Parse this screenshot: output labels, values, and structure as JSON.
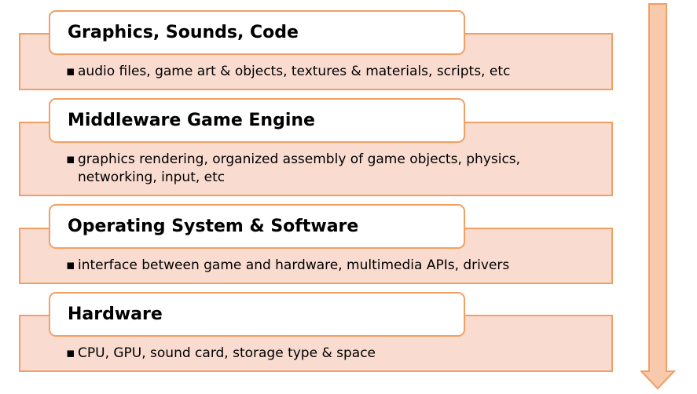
{
  "layers": [
    {
      "title": "Graphics, Sounds, Code",
      "bullets": [
        "audio files, game art & objects, textures & materials, scripts, etc"
      ]
    },
    {
      "title": "Middleware Game Engine",
      "bullets": [
        "graphics rendering, organized assembly of game objects, physics, networking, input, etc"
      ]
    },
    {
      "title": "Operating System & Software",
      "bullets": [
        "interface between game and hardware, multimedia APIs, drivers"
      ]
    },
    {
      "title": "Hardware",
      "bullets": [
        "CPU, GPU, sound card, storage type & space"
      ]
    }
  ],
  "colors": {
    "band_fill": "#f9dbd0",
    "border": "#f39f63",
    "arrow_fill": "#f9c9ad"
  },
  "arrow_icon": "down-arrow-icon"
}
